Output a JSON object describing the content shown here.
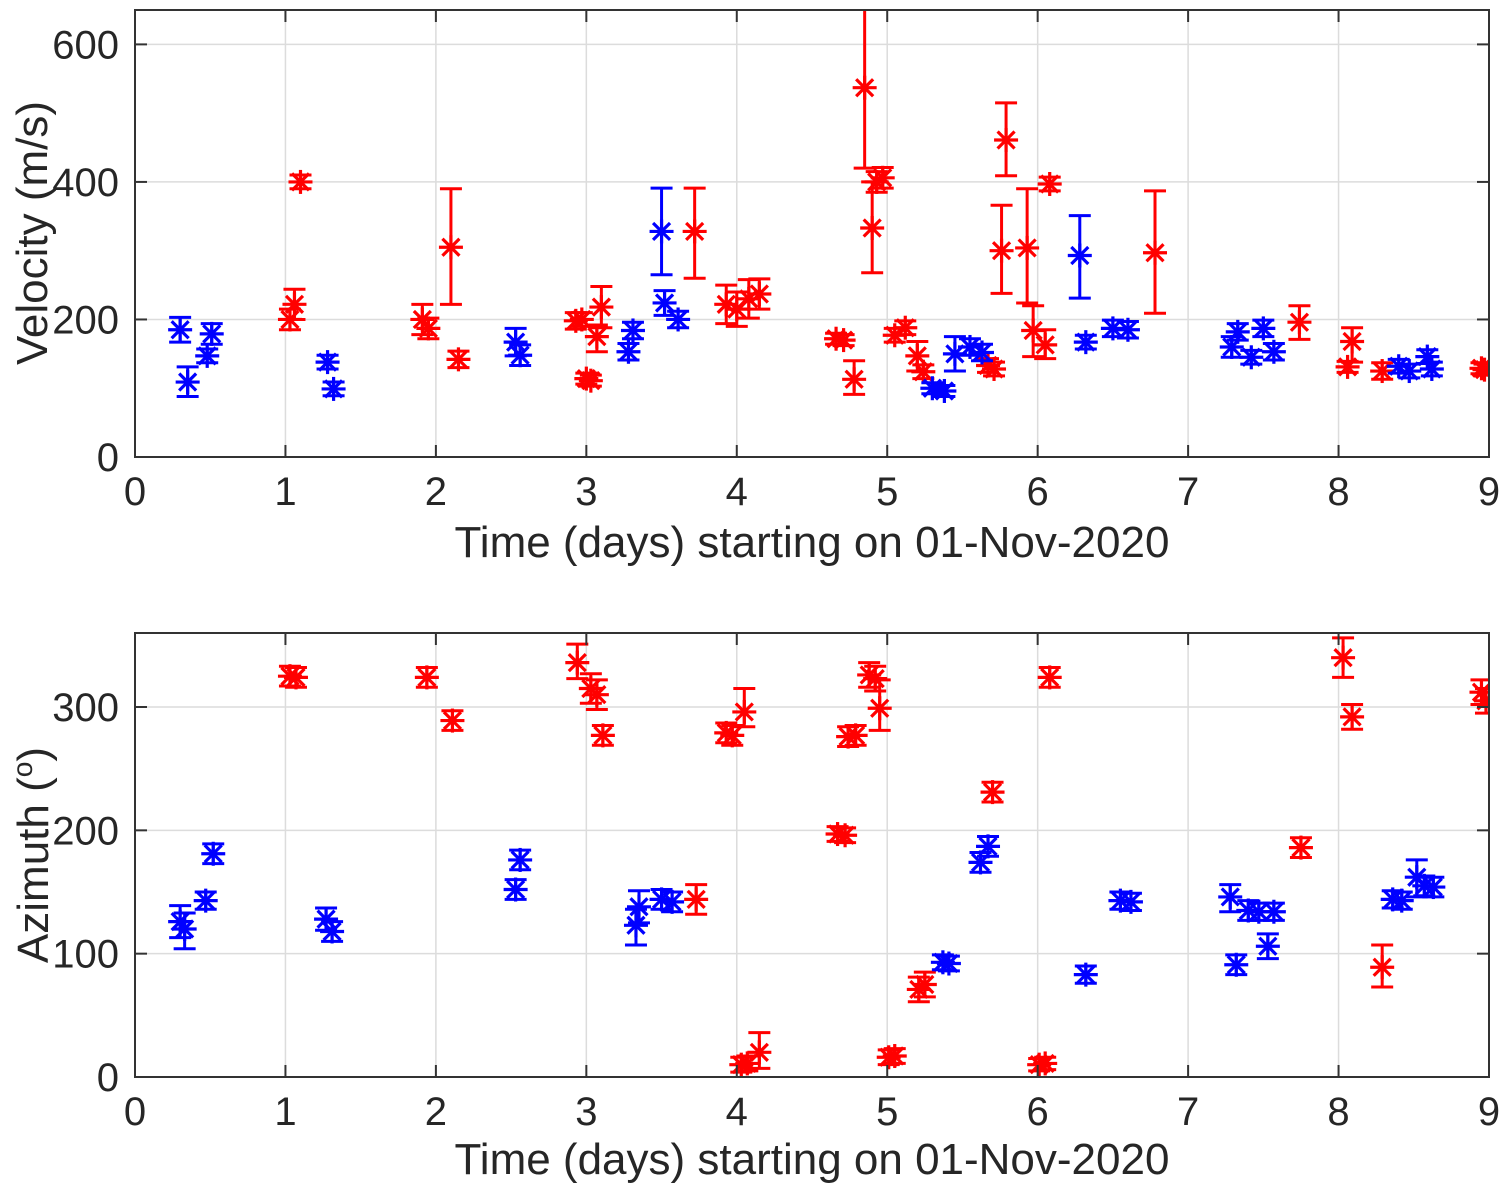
{
  "figure": {
    "background": "#ffffff",
    "axis_color": "#333333",
    "grid_color": "#dcdcdc",
    "text_color": "#262626",
    "red": "#ff0000",
    "blue": "#0000ff"
  },
  "chart_data": [
    {
      "type": "scatter",
      "subplot": "velocity",
      "marker": "asterisk",
      "error_bars": true,
      "grid": true,
      "legend": null,
      "xlabel": "Time (days) starting on 01-Nov-2020",
      "ylabel": "Velocity (m/s)",
      "xlim": [
        0,
        9
      ],
      "ylim": [
        0,
        650
      ],
      "x_ticks": [
        0,
        1,
        2,
        3,
        4,
        5,
        6,
        7,
        8,
        9
      ],
      "y_ticks": [
        0,
        200,
        400,
        600
      ],
      "series": [
        {
          "name": "red",
          "color": "#ff0000",
          "points": [
            {
              "x": 1.03,
              "y": 200,
              "lo": 15,
              "hi": 15
            },
            {
              "x": 1.06,
              "y": 222,
              "lo": 22,
              "hi": 22
            },
            {
              "x": 1.1,
              "y": 400,
              "lo": 10,
              "hi": 10
            },
            {
              "x": 1.91,
              "y": 200,
              "lo": 22,
              "hi": 22
            },
            {
              "x": 1.95,
              "y": 187,
              "lo": 15,
              "hi": 15
            },
            {
              "x": 2.1,
              "y": 305,
              "lo": 83,
              "hi": 85
            },
            {
              "x": 2.15,
              "y": 142,
              "lo": 12,
              "hi": 12
            },
            {
              "x": 2.93,
              "y": 198,
              "lo": 12,
              "hi": 12
            },
            {
              "x": 2.97,
              "y": 200,
              "lo": 10,
              "hi": 10
            },
            {
              "x": 3.0,
              "y": 114,
              "lo": 8,
              "hi": 8
            },
            {
              "x": 3.03,
              "y": 111,
              "lo": 8,
              "hi": 8
            },
            {
              "x": 3.07,
              "y": 175,
              "lo": 22,
              "hi": 17
            },
            {
              "x": 3.1,
              "y": 218,
              "lo": 30,
              "hi": 30
            },
            {
              "x": 3.72,
              "y": 328,
              "lo": 68,
              "hi": 63
            },
            {
              "x": 3.93,
              "y": 222,
              "lo": 28,
              "hi": 28
            },
            {
              "x": 4.0,
              "y": 215,
              "lo": 25,
              "hi": 25
            },
            {
              "x": 4.08,
              "y": 230,
              "lo": 28,
              "hi": 28
            },
            {
              "x": 4.15,
              "y": 237,
              "lo": 22,
              "hi": 22
            },
            {
              "x": 4.66,
              "y": 172,
              "lo": 8,
              "hi": 8
            },
            {
              "x": 4.71,
              "y": 170,
              "lo": 8,
              "hi": 8
            },
            {
              "x": 4.78,
              "y": 113,
              "lo": 22,
              "hi": 27
            },
            {
              "x": 4.85,
              "y": 537,
              "lo": 117,
              "hi": 125
            },
            {
              "x": 4.9,
              "y": 333,
              "lo": 65,
              "hi": 67
            },
            {
              "x": 4.93,
              "y": 400,
              "lo": 15,
              "hi": 15
            },
            {
              "x": 4.97,
              "y": 406,
              "lo": 15,
              "hi": 15
            },
            {
              "x": 5.05,
              "y": 177,
              "lo": 10,
              "hi": 10
            },
            {
              "x": 5.12,
              "y": 188,
              "lo": 10,
              "hi": 10
            },
            {
              "x": 5.2,
              "y": 147,
              "lo": 22,
              "hi": 21
            },
            {
              "x": 5.24,
              "y": 124,
              "lo": 10,
              "hi": 10
            },
            {
              "x": 5.67,
              "y": 133,
              "lo": 10,
              "hi": 10
            },
            {
              "x": 5.71,
              "y": 128,
              "lo": 10,
              "hi": 10
            },
            {
              "x": 5.76,
              "y": 300,
              "lo": 62,
              "hi": 66
            },
            {
              "x": 5.79,
              "y": 461,
              "lo": 52,
              "hi": 54
            },
            {
              "x": 5.93,
              "y": 304,
              "lo": 80,
              "hi": 86
            },
            {
              "x": 5.97,
              "y": 184,
              "lo": 38,
              "hi": 36
            },
            {
              "x": 6.05,
              "y": 163,
              "lo": 20,
              "hi": 22
            },
            {
              "x": 6.08,
              "y": 397,
              "lo": 10,
              "hi": 10
            },
            {
              "x": 6.78,
              "y": 297,
              "lo": 88,
              "hi": 90
            },
            {
              "x": 7.74,
              "y": 196,
              "lo": 25,
              "hi": 24
            },
            {
              "x": 8.06,
              "y": 131,
              "lo": 8,
              "hi": 8
            },
            {
              "x": 8.09,
              "y": 168,
              "lo": 30,
              "hi": 20
            },
            {
              "x": 8.29,
              "y": 125,
              "lo": 12,
              "hi": 12
            },
            {
              "x": 8.95,
              "y": 129,
              "lo": 8,
              "hi": 8
            },
            {
              "x": 8.97,
              "y": 127,
              "lo": 8,
              "hi": 8
            }
          ]
        },
        {
          "name": "blue",
          "color": "#0000ff",
          "points": [
            {
              "x": 0.3,
              "y": 185,
              "lo": 18,
              "hi": 18
            },
            {
              "x": 0.35,
              "y": 109,
              "lo": 21,
              "hi": 22
            },
            {
              "x": 0.48,
              "y": 147,
              "lo": 10,
              "hi": 10
            },
            {
              "x": 0.51,
              "y": 179,
              "lo": 15,
              "hi": 15
            },
            {
              "x": 1.28,
              "y": 138,
              "lo": 10,
              "hi": 10
            },
            {
              "x": 1.32,
              "y": 99,
              "lo": 10,
              "hi": 10
            },
            {
              "x": 2.53,
              "y": 167,
              "lo": 20,
              "hi": 20
            },
            {
              "x": 2.56,
              "y": 148,
              "lo": 15,
              "hi": 15
            },
            {
              "x": 3.28,
              "y": 153,
              "lo": 12,
              "hi": 12
            },
            {
              "x": 3.31,
              "y": 184,
              "lo": 12,
              "hi": 12
            },
            {
              "x": 3.5,
              "y": 328,
              "lo": 63,
              "hi": 63
            },
            {
              "x": 3.52,
              "y": 224,
              "lo": 18,
              "hi": 18
            },
            {
              "x": 3.61,
              "y": 200,
              "lo": 12,
              "hi": 12
            },
            {
              "x": 5.3,
              "y": 100,
              "lo": 8,
              "hi": 8
            },
            {
              "x": 5.38,
              "y": 96,
              "lo": 8,
              "hi": 8
            },
            {
              "x": 5.45,
              "y": 150,
              "lo": 25,
              "hi": 25
            },
            {
              "x": 5.55,
              "y": 160,
              "lo": 12,
              "hi": 12
            },
            {
              "x": 5.63,
              "y": 152,
              "lo": 12,
              "hi": 12
            },
            {
              "x": 6.28,
              "y": 293,
              "lo": 62,
              "hi": 58
            },
            {
              "x": 6.32,
              "y": 167,
              "lo": 10,
              "hi": 10
            },
            {
              "x": 6.5,
              "y": 187,
              "lo": 12,
              "hi": 12
            },
            {
              "x": 6.6,
              "y": 185,
              "lo": 12,
              "hi": 12
            },
            {
              "x": 7.29,
              "y": 160,
              "lo": 15,
              "hi": 15
            },
            {
              "x": 7.33,
              "y": 182,
              "lo": 12,
              "hi": 12
            },
            {
              "x": 7.42,
              "y": 145,
              "lo": 10,
              "hi": 10
            },
            {
              "x": 7.5,
              "y": 187,
              "lo": 12,
              "hi": 12
            },
            {
              "x": 7.57,
              "y": 153,
              "lo": 12,
              "hi": 12
            },
            {
              "x": 8.4,
              "y": 132,
              "lo": 10,
              "hi": 10
            },
            {
              "x": 8.47,
              "y": 125,
              "lo": 10,
              "hi": 10
            },
            {
              "x": 8.59,
              "y": 146,
              "lo": 10,
              "hi": 10
            },
            {
              "x": 8.62,
              "y": 128,
              "lo": 10,
              "hi": 10
            }
          ]
        }
      ]
    },
    {
      "type": "scatter",
      "subplot": "azimuth",
      "marker": "asterisk",
      "error_bars": true,
      "grid": true,
      "legend": null,
      "xlabel": "Time (days) starting on 01-Nov-2020",
      "ylabel_parts": {
        "prefix": "Azimuth (",
        "sup": "o",
        "suffix": ")"
      },
      "xlim": [
        0,
        9
      ],
      "ylim": [
        0,
        360
      ],
      "x_ticks": [
        0,
        1,
        2,
        3,
        4,
        5,
        6,
        7,
        8,
        9
      ],
      "y_ticks": [
        0,
        100,
        200,
        300
      ],
      "series": [
        {
          "name": "red",
          "color": "#ff0000",
          "points": [
            {
              "x": 1.03,
              "y": 325,
              "lo": 8,
              "hi": 8
            },
            {
              "x": 1.07,
              "y": 324,
              "lo": 8,
              "hi": 8
            },
            {
              "x": 1.94,
              "y": 324,
              "lo": 8,
              "hi": 8
            },
            {
              "x": 2.11,
              "y": 289,
              "lo": 8,
              "hi": 8
            },
            {
              "x": 2.94,
              "y": 336,
              "lo": 13,
              "hi": 15
            },
            {
              "x": 3.03,
              "y": 315,
              "lo": 12,
              "hi": 12
            },
            {
              "x": 3.07,
              "y": 310,
              "lo": 12,
              "hi": 12
            },
            {
              "x": 3.11,
              "y": 277,
              "lo": 8,
              "hi": 8
            },
            {
              "x": 3.73,
              "y": 144,
              "lo": 12,
              "hi": 12
            },
            {
              "x": 3.93,
              "y": 279,
              "lo": 8,
              "hi": 8
            },
            {
              "x": 3.97,
              "y": 277,
              "lo": 8,
              "hi": 8
            },
            {
              "x": 4.05,
              "y": 296,
              "lo": 12,
              "hi": 19
            },
            {
              "x": 4.03,
              "y": 10,
              "lo": 6,
              "hi": 6
            },
            {
              "x": 4.07,
              "y": 11,
              "lo": 6,
              "hi": 6
            },
            {
              "x": 4.15,
              "y": 20,
              "lo": 13,
              "hi": 16
            },
            {
              "x": 4.67,
              "y": 197,
              "lo": 6,
              "hi": 6
            },
            {
              "x": 4.72,
              "y": 196,
              "lo": 6,
              "hi": 6
            },
            {
              "x": 4.74,
              "y": 276,
              "lo": 8,
              "hi": 8
            },
            {
              "x": 4.79,
              "y": 277,
              "lo": 8,
              "hi": 8
            },
            {
              "x": 4.88,
              "y": 326,
              "lo": 10,
              "hi": 10
            },
            {
              "x": 4.92,
              "y": 323,
              "lo": 10,
              "hi": 10
            },
            {
              "x": 4.95,
              "y": 299,
              "lo": 18,
              "hi": 23
            },
            {
              "x": 5.01,
              "y": 16,
              "lo": 6,
              "hi": 6
            },
            {
              "x": 5.05,
              "y": 17,
              "lo": 6,
              "hi": 6
            },
            {
              "x": 5.21,
              "y": 71,
              "lo": 10,
              "hi": 10
            },
            {
              "x": 5.25,
              "y": 75,
              "lo": 10,
              "hi": 10
            },
            {
              "x": 5.7,
              "y": 231,
              "lo": 8,
              "hi": 8
            },
            {
              "x": 6.01,
              "y": 10,
              "lo": 5,
              "hi": 5
            },
            {
              "x": 6.05,
              "y": 11,
              "lo": 5,
              "hi": 5
            },
            {
              "x": 6.08,
              "y": 324,
              "lo": 8,
              "hi": 8
            },
            {
              "x": 7.75,
              "y": 186,
              "lo": 8,
              "hi": 8
            },
            {
              "x": 8.03,
              "y": 340,
              "lo": 16,
              "hi": 16
            },
            {
              "x": 8.09,
              "y": 292,
              "lo": 10,
              "hi": 10
            },
            {
              "x": 8.29,
              "y": 89,
              "lo": 16,
              "hi": 18
            },
            {
              "x": 8.95,
              "y": 312,
              "lo": 10,
              "hi": 10
            },
            {
              "x": 8.98,
              "y": 305,
              "lo": 10,
              "hi": 10
            }
          ]
        },
        {
          "name": "blue",
          "color": "#0000ff",
          "points": [
            {
              "x": 0.3,
              "y": 126,
              "lo": 13,
              "hi": 13
            },
            {
              "x": 0.33,
              "y": 120,
              "lo": 16,
              "hi": 13
            },
            {
              "x": 0.47,
              "y": 143,
              "lo": 7,
              "hi": 7
            },
            {
              "x": 0.52,
              "y": 181,
              "lo": 8,
              "hi": 8
            },
            {
              "x": 1.27,
              "y": 128,
              "lo": 9,
              "hi": 9
            },
            {
              "x": 1.31,
              "y": 118,
              "lo": 8,
              "hi": 8
            },
            {
              "x": 2.53,
              "y": 152,
              "lo": 8,
              "hi": 8
            },
            {
              "x": 2.56,
              "y": 176,
              "lo": 8,
              "hi": 8
            },
            {
              "x": 3.33,
              "y": 123,
              "lo": 16,
              "hi": 13
            },
            {
              "x": 3.35,
              "y": 138,
              "lo": 13,
              "hi": 13
            },
            {
              "x": 3.5,
              "y": 144,
              "lo": 8,
              "hi": 8
            },
            {
              "x": 3.57,
              "y": 142,
              "lo": 8,
              "hi": 8
            },
            {
              "x": 5.37,
              "y": 93,
              "lo": 6,
              "hi": 6
            },
            {
              "x": 5.41,
              "y": 92,
              "lo": 6,
              "hi": 6
            },
            {
              "x": 5.62,
              "y": 174,
              "lo": 8,
              "hi": 8
            },
            {
              "x": 5.67,
              "y": 187,
              "lo": 8,
              "hi": 8
            },
            {
              "x": 6.32,
              "y": 83,
              "lo": 7,
              "hi": 7
            },
            {
              "x": 6.55,
              "y": 143,
              "lo": 7,
              "hi": 7
            },
            {
              "x": 6.62,
              "y": 142,
              "lo": 7,
              "hi": 7
            },
            {
              "x": 7.28,
              "y": 146,
              "lo": 12,
              "hi": 10
            },
            {
              "x": 7.32,
              "y": 91,
              "lo": 8,
              "hi": 8
            },
            {
              "x": 7.4,
              "y": 135,
              "lo": 8,
              "hi": 8
            },
            {
              "x": 7.47,
              "y": 134,
              "lo": 7,
              "hi": 7
            },
            {
              "x": 7.53,
              "y": 106,
              "lo": 10,
              "hi": 10
            },
            {
              "x": 7.57,
              "y": 134,
              "lo": 7,
              "hi": 7
            },
            {
              "x": 8.36,
              "y": 144,
              "lo": 7,
              "hi": 7
            },
            {
              "x": 8.42,
              "y": 143,
              "lo": 7,
              "hi": 7
            },
            {
              "x": 8.52,
              "y": 162,
              "lo": 16,
              "hi": 14
            },
            {
              "x": 8.57,
              "y": 155,
              "lo": 8,
              "hi": 8
            },
            {
              "x": 8.63,
              "y": 154,
              "lo": 8,
              "hi": 8
            }
          ]
        }
      ]
    }
  ]
}
